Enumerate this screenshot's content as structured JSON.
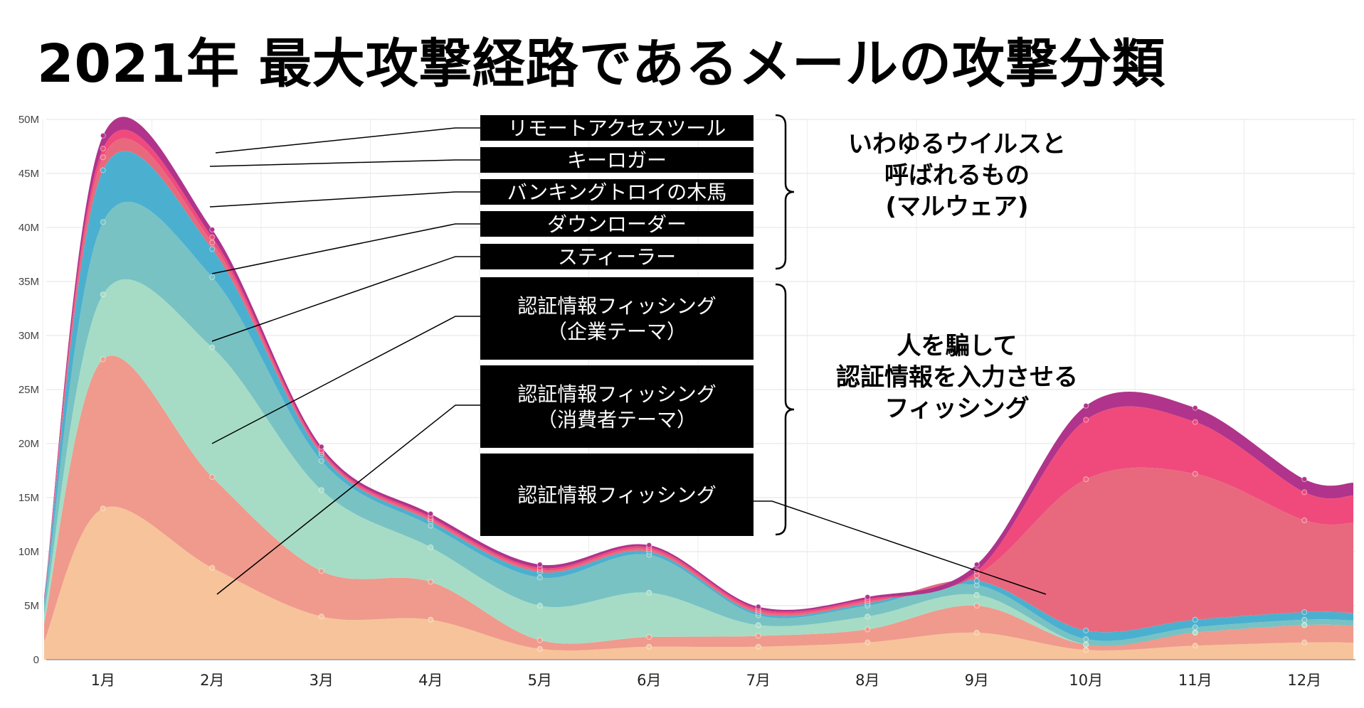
{
  "title": "2021年 最大攻撃経路であるメールの攻撃分類",
  "chart_data": {
    "type": "area",
    "stacked": true,
    "title": "2021年 最大攻撃経路であるメールの攻撃分類",
    "xlabel": "",
    "ylabel": "",
    "ylim": [
      0,
      50
    ],
    "y_unit": "M",
    "grid": true,
    "y_ticks": [
      "0",
      "5M",
      "10M",
      "15M",
      "20M",
      "25M",
      "30M",
      "35M",
      "40M",
      "45M",
      "50M"
    ],
    "categories": [
      "1月",
      "2月",
      "3月",
      "4月",
      "5月",
      "6月",
      "7月",
      "8月",
      "9月",
      "10月",
      "11月",
      "12月"
    ],
    "series": [
      {
        "name": "認証情報フィッシング",
        "color": "#f7c39b",
        "values": [
          14.0,
          8.5,
          4.0,
          3.7,
          1.0,
          1.2,
          1.2,
          1.6,
          2.5,
          0.9,
          1.3,
          1.6
        ]
      },
      {
        "name": "認証情報フィッシング（消費者テーマ）",
        "color": "#ef9a8c",
        "values": [
          13.8,
          8.4,
          4.2,
          3.5,
          0.8,
          0.9,
          1.0,
          1.2,
          2.5,
          0.5,
          1.2,
          1.6
        ]
      },
      {
        "name": "認証情報フィッシング（企業テーマ）",
        "color": "#a6dcc6",
        "values": [
          6.0,
          12.0,
          7.5,
          3.2,
          3.2,
          4.1,
          1.0,
          1.2,
          1.0,
          0.0,
          0.0,
          0.0
        ]
      },
      {
        "name": "スティーラー",
        "color": "#79c2c3",
        "values": [
          6.7,
          6.5,
          2.7,
          2.0,
          2.6,
          3.5,
          0.9,
          1.0,
          0.9,
          0.5,
          0.5,
          0.5
        ]
      },
      {
        "name": "ダウンローダー",
        "color": "#4bb0cf",
        "values": [
          4.8,
          2.6,
          0.6,
          0.4,
          0.5,
          0.3,
          0.2,
          0.2,
          0.4,
          0.8,
          0.7,
          0.7
        ]
      },
      {
        "name": "バンキングトロイの木馬",
        "color": "#e8697e",
        "values": [
          1.2,
          0.6,
          0.2,
          0.2,
          0.2,
          0.2,
          0.2,
          0.2,
          0.5,
          14.0,
          13.5,
          8.5
        ]
      },
      {
        "name": "キーロガー",
        "color": "#f04a7c",
        "values": [
          0.8,
          0.5,
          0.2,
          0.2,
          0.2,
          0.2,
          0.2,
          0.2,
          0.4,
          5.5,
          4.8,
          2.6
        ]
      },
      {
        "name": "リモートアクセスツール",
        "color": "#b0348b",
        "values": [
          1.2,
          0.7,
          0.3,
          0.3,
          0.3,
          0.2,
          0.2,
          0.2,
          0.6,
          1.3,
          1.3,
          1.2
        ]
      }
    ],
    "legend_callouts": [
      "リモートアクセスツール",
      "キーロガー",
      "バンキングトロイの木馬",
      "ダウンローダー",
      "スティーラー",
      "認証情報フィッシング\n（企業テーマ）",
      "認証情報フィッシング\n（消費者テーマ）",
      "認証情報フィッシング"
    ],
    "groups": [
      {
        "text": "いわゆるウイルスと\n呼ばれるもの\n(マルウェア)"
      },
      {
        "text": "人を騙して\n認証情報を入力させる\nフィッシング"
      }
    ]
  }
}
